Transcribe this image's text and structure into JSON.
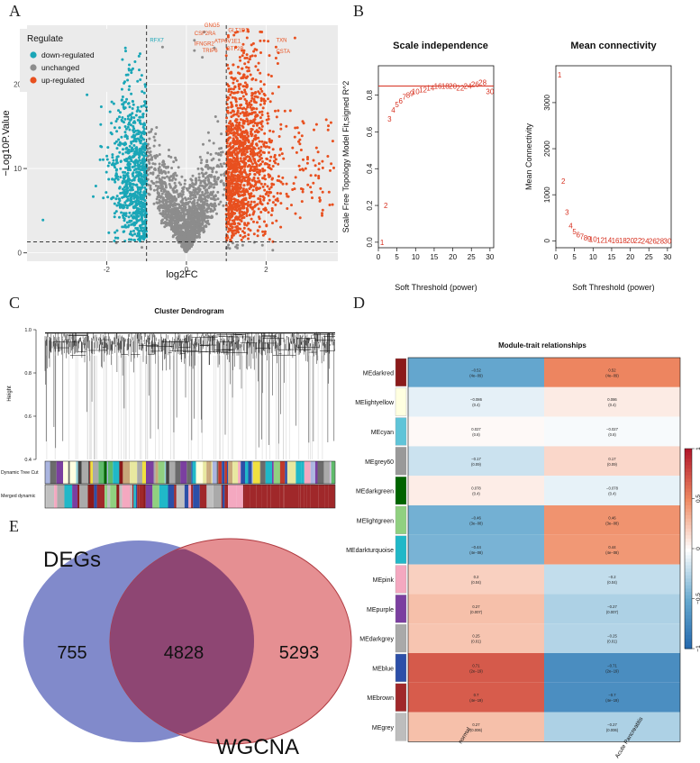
{
  "panel_letters": {
    "a": "A",
    "b": "B",
    "c": "C",
    "d": "D",
    "e": "E"
  },
  "colors": {
    "down": "#1aa6b7",
    "unchanged": "#8c8c8c",
    "up": "#e8501f",
    "red": "#d7301f"
  },
  "chart_data": [
    {
      "type": "scatter",
      "panel": "A",
      "title": "",
      "xlabel": "log2FC",
      "ylabel": "−Log10P.Value",
      "xlim": [
        -4,
        3.8
      ],
      "ylim": [
        -1,
        27
      ],
      "x_ticks": [
        "-2",
        "0",
        "2"
      ],
      "x_tick_values": [
        -2,
        0,
        2
      ],
      "y_ticks": [
        "0",
        "10",
        "20"
      ],
      "y_tick_values": [
        0,
        10,
        20
      ],
      "vertical_cutoffs": [
        -1,
        1
      ],
      "horizontal_cutoff": 1.3,
      "legend": {
        "title": "Regulate",
        "entries": [
          "down-regulated",
          "unchanged",
          "up-regulated"
        ],
        "position": "top-left"
      },
      "outlier_point": {
        "x": -3.6,
        "y": 3.9
      },
      "annotations": [
        {
          "label": "RFX7",
          "x": -0.6,
          "y": 25.0,
          "group": "down"
        },
        {
          "label": "GNG5",
          "x": 0.45,
          "y": 26.8,
          "group": "up"
        },
        {
          "label": "CSF2RA",
          "x": 0.2,
          "y": 25.8,
          "group": "up"
        },
        {
          "label": "GLT1D1",
          "x": 1.05,
          "y": 26.2,
          "group": "up"
        },
        {
          "label": "ATP6V1E1",
          "x": 0.7,
          "y": 24.9,
          "group": "up"
        },
        {
          "label": "IFNGR2",
          "x": 0.2,
          "y": 24.6,
          "group": "up"
        },
        {
          "label": "TRIP6",
          "x": 0.4,
          "y": 23.8,
          "group": "up"
        },
        {
          "label": "GTF2B",
          "x": 1.0,
          "y": 24.0,
          "group": "up"
        },
        {
          "label": "TXN",
          "x": 2.25,
          "y": 25.0,
          "group": "up"
        },
        {
          "label": "CSTA",
          "x": 2.25,
          "y": 23.7,
          "group": "up"
        }
      ]
    },
    {
      "type": "scatter",
      "panel": "B-left",
      "title": "Scale independence",
      "xlabel": "Soft Threshold (power)",
      "ylabel": "Scale Free Topology Model Fit,signed R^2",
      "xlim": [
        0,
        31
      ],
      "ylim": [
        -0.03,
        0.96
      ],
      "x_ticks": [
        "0",
        "5",
        "10",
        "15",
        "20",
        "25",
        "30"
      ],
      "x_tick_values": [
        0,
        5,
        10,
        15,
        20,
        25,
        30
      ],
      "y_ticks": [
        "0.0",
        "0.2",
        "0.4",
        "0.6",
        "0.8"
      ],
      "y_tick_values": [
        0,
        0.2,
        0.4,
        0.6,
        0.8
      ],
      "threshold_line": 0.85,
      "powers": [
        1,
        2,
        3,
        4,
        5,
        6,
        7,
        8,
        9,
        10,
        12,
        14,
        16,
        18,
        20,
        22,
        24,
        26,
        28,
        30
      ],
      "values": [
        0.0,
        0.2,
        0.67,
        0.72,
        0.75,
        0.77,
        0.79,
        0.8,
        0.81,
        0.82,
        0.83,
        0.84,
        0.85,
        0.85,
        0.85,
        0.84,
        0.85,
        0.86,
        0.87,
        0.82
      ]
    },
    {
      "type": "scatter",
      "panel": "B-right",
      "title": "Mean connectivity",
      "xlabel": "Soft Threshold (power)",
      "ylabel": "Mean Connectivity",
      "xlim": [
        0,
        31
      ],
      "ylim": [
        -150,
        3800
      ],
      "x_ticks": [
        "0",
        "5",
        "10",
        "15",
        "20",
        "25",
        "30"
      ],
      "x_tick_values": [
        0,
        5,
        10,
        15,
        20,
        25,
        30
      ],
      "y_ticks": [
        "0",
        "1000",
        "2000",
        "3000"
      ],
      "y_tick_values": [
        0,
        1000,
        2000,
        3000
      ],
      "powers": [
        1,
        2,
        3,
        4,
        5,
        6,
        7,
        8,
        9,
        10,
        12,
        14,
        16,
        18,
        20,
        22,
        24,
        26,
        28,
        30
      ],
      "values": [
        3600,
        1300,
        620,
        330,
        200,
        130,
        90,
        65,
        45,
        35,
        20,
        12,
        8,
        5,
        3,
        2,
        1,
        1,
        1,
        0
      ]
    },
    {
      "type": "dendrogram",
      "panel": "C",
      "title": "Cluster Dendrogram",
      "ylabel": "Height",
      "ylim": [
        0.4,
        1.0
      ],
      "y_ticks": [
        "0.4",
        "0.6",
        "0.8",
        "1.0"
      ],
      "y_tick_values": [
        0.4,
        0.6,
        0.8,
        1.0
      ],
      "row_labels": [
        "Dynamic Tree Cut",
        "Merged dynamic"
      ]
    },
    {
      "type": "heatmap",
      "panel": "D",
      "title": "Module-trait relationships",
      "columns": [
        "normal",
        "Acute Pancreatitis"
      ],
      "legend_ticks": [
        "1",
        "0.5",
        "0",
        "−0.5",
        "−1"
      ],
      "legend_tick_values": [
        1,
        0.5,
        0,
        -0.5,
        -1
      ],
      "rows": [
        {
          "module": "MEdarkred",
          "swatch": "#8b1a1a",
          "normal": {
            "r": -0.52,
            "t1": "−0.52",
            "t2": "(4e−09)"
          },
          "ap": {
            "r": 0.52,
            "t1": "0.52",
            "t2": "(4e−09)"
          }
        },
        {
          "module": "MElightyellow",
          "swatch": "#ffffe0",
          "normal": {
            "r": -0.086,
            "t1": "−0.086",
            "t2": "(0.4)"
          },
          "ap": {
            "r": 0.086,
            "t1": "0.086",
            "t2": "(0.4)"
          }
        },
        {
          "module": "MEcyan",
          "swatch": "#5fc4d8",
          "normal": {
            "r": 0.027,
            "t1": "0.027",
            "t2": "(0.8)"
          },
          "ap": {
            "r": -0.027,
            "t1": "−0.027",
            "t2": "(0.8)"
          }
        },
        {
          "module": "MEgrey60",
          "swatch": "#999999",
          "normal": {
            "r": -0.17,
            "t1": "−0.17",
            "t2": "(0.09)"
          },
          "ap": {
            "r": 0.17,
            "t1": "0.17",
            "t2": "(0.09)"
          }
        },
        {
          "module": "MEdarkgreen",
          "swatch": "#006400",
          "normal": {
            "r": 0.078,
            "t1": "0.078",
            "t2": "(0.4)"
          },
          "ap": {
            "r": -0.078,
            "t1": "−0.078",
            "t2": "(0.4)"
          }
        },
        {
          "module": "MElightgreen",
          "swatch": "#90d080",
          "normal": {
            "r": -0.46,
            "t1": "−0.46",
            "t2": "(3e−08)"
          },
          "ap": {
            "r": 0.46,
            "t1": "0.46",
            "t2": "(3e−08)"
          }
        },
        {
          "module": "MEdarkturquoise",
          "swatch": "#20b8c8",
          "normal": {
            "r": -0.44,
            "t1": "−0.44",
            "t2": "(4e−08)"
          },
          "ap": {
            "r": 0.44,
            "t1": "0.44",
            "t2": "(4e−08)"
          }
        },
        {
          "module": "MEpink",
          "swatch": "#f4a8c0",
          "normal": {
            "r": 0.2,
            "t1": "0.2",
            "t2": "(0.04)"
          },
          "ap": {
            "r": -0.2,
            "t1": "−0.2",
            "t2": "(0.04)"
          }
        },
        {
          "module": "MEpurple",
          "swatch": "#7b3fa0",
          "normal": {
            "r": 0.27,
            "t1": "0.27",
            "t2": "(0.007)"
          },
          "ap": {
            "r": -0.27,
            "t1": "−0.27",
            "t2": "(0.007)"
          }
        },
        {
          "module": "MEdarkgrey",
          "swatch": "#a9a9a9",
          "normal": {
            "r": 0.25,
            "t1": "0.25",
            "t2": "(0.01)"
          },
          "ap": {
            "r": -0.25,
            "t1": "−0.25",
            "t2": "(0.01)"
          }
        },
        {
          "module": "MEblue",
          "swatch": "#2c4fa8",
          "normal": {
            "r": 0.71,
            "t1": "0.71",
            "t2": "(2e−19)"
          },
          "ap": {
            "r": -0.71,
            "t1": "−0.71",
            "t2": "(2e−19)"
          }
        },
        {
          "module": "MEbrown",
          "swatch": "#a0282a",
          "normal": {
            "r": 0.7,
            "t1": "0.7",
            "t2": "(4e−19)"
          },
          "ap": {
            "r": -0.7,
            "t1": "−0.7",
            "t2": "(4e−19)"
          }
        },
        {
          "module": "MEgrey",
          "swatch": "#bdbdbd",
          "normal": {
            "r": 0.27,
            "t1": "0.27",
            "t2": "(0.006)"
          },
          "ap": {
            "r": -0.27,
            "t1": "−0.27",
            "t2": "(0.006)"
          }
        }
      ]
    },
    {
      "type": "venn",
      "panel": "E",
      "sets": [
        "DEGs",
        "WGCNA"
      ],
      "only_a": 755,
      "both": 4828,
      "only_b": 5293,
      "set_colors": [
        "#6b75c2",
        "#dc6a6e"
      ]
    }
  ]
}
